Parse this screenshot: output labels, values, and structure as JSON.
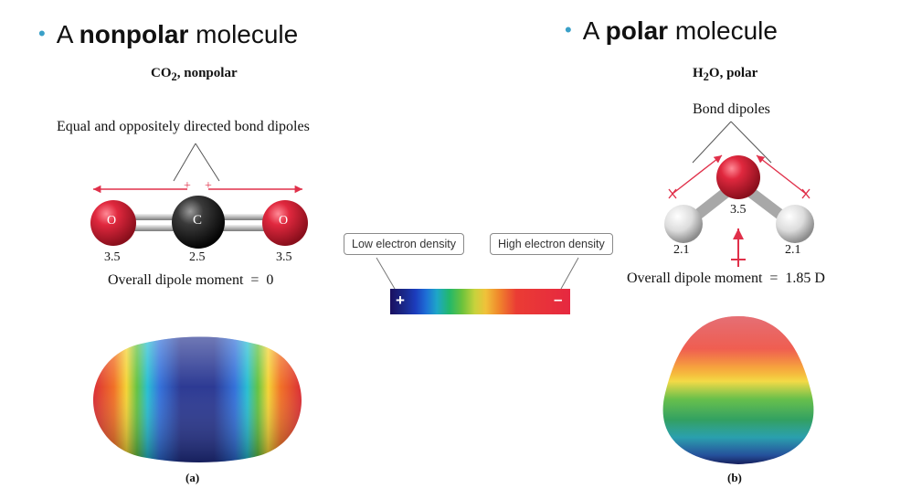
{
  "left": {
    "heading_prefix": "A",
    "heading_bold": "nonpolar",
    "heading_suffix": "molecule",
    "formula_main": "CO",
    "formula_sub": "2",
    "formula_rest": ", nonpolar",
    "bond_label": "Equal and oppositely directed bond dipoles",
    "atoms": [
      "O",
      "C",
      "O"
    ],
    "electronegativity": [
      "3.5",
      "2.5",
      "3.5"
    ],
    "plus_signs": [
      "+",
      "+"
    ],
    "dipole_text": "Overall dipole moment  =  0",
    "caption": "(a)"
  },
  "right": {
    "heading_prefix": "A",
    "heading_bold": "polar",
    "heading_suffix": "molecule",
    "formula_main": "H",
    "formula_sub": "2",
    "formula_rest": "O, polar",
    "bond_label": "Bond dipoles",
    "electronegativity_o": "3.5",
    "electronegativity_h": [
      "2.1",
      "2.1"
    ],
    "dipole_text": "Overall dipole moment  =  1.85 D",
    "caption": "(b)"
  },
  "legend": {
    "low": "Low electron density",
    "high": "High electron density",
    "plus": "+",
    "minus": "–"
  },
  "colors": {
    "bullet": "#3aa0c8",
    "arrow": "#e0304a",
    "oxygen": "#d8233a",
    "carbon": "#2a2a2a",
    "hydrogen": "#e6e6e6"
  }
}
